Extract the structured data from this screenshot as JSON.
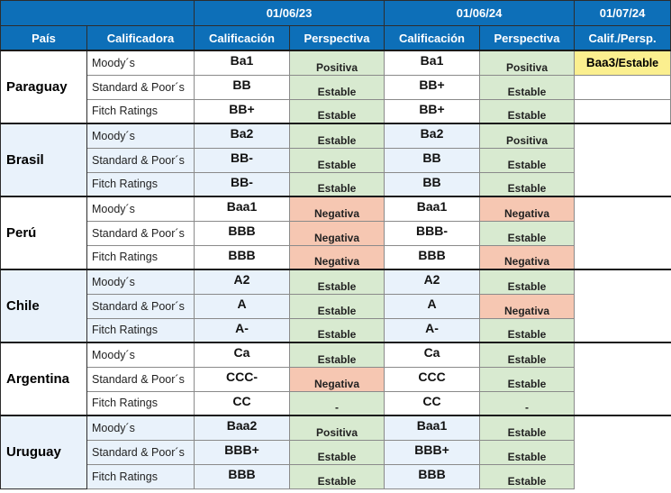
{
  "header": {
    "dates": [
      "01/06/23",
      "01/06/24",
      "01/07/24"
    ],
    "columns": [
      "País",
      "Calificadora",
      "Calificación",
      "Perspectiva",
      "Calificación",
      "Perspectiva",
      "Calif./Persp."
    ]
  },
  "countries": [
    {
      "name": "Paraguay",
      "rows": [
        {
          "agency": "Moody´s",
          "r23": "Ba1",
          "p23": "Positiva",
          "r24": "Ba1",
          "p24": "Positiva",
          "cur_rating": "Baa3",
          "cur_sep": "/",
          "cur_outlook": "Estable"
        },
        {
          "agency": "Standard & Poor´s",
          "r23": "BB",
          "p23": "Estable",
          "r24": "BB+",
          "p24": "Estable"
        },
        {
          "agency": "Fitch Ratings",
          "r23": "BB+",
          "p23": "Estable",
          "r24": "BB+",
          "p24": "Estable"
        }
      ]
    },
    {
      "name": "Brasil",
      "rows": [
        {
          "agency": "Moody´s",
          "r23": "Ba2",
          "p23": "Estable",
          "r24": "Ba2",
          "p24": "Positiva"
        },
        {
          "agency": "Standard & Poor´s",
          "r23": "BB-",
          "p23": "Estable",
          "r24": "BB",
          "p24": "Estable"
        },
        {
          "agency": "Fitch Ratings",
          "r23": "BB-",
          "p23": "Estable",
          "r24": "BB",
          "p24": "Estable"
        }
      ]
    },
    {
      "name": "Perú",
      "rows": [
        {
          "agency": "Moody´s",
          "r23": "Baa1",
          "p23": "Negativa",
          "r24": "Baa1",
          "p24": "Negativa"
        },
        {
          "agency": "Standard & Poor´s",
          "r23": "BBB",
          "p23": "Negativa",
          "r24": "BBB-",
          "p24": "Estable"
        },
        {
          "agency": "Fitch Ratings",
          "r23": "BBB",
          "p23": "Negativa",
          "r24": "BBB",
          "p24": "Negativa"
        }
      ]
    },
    {
      "name": "Chile",
      "rows": [
        {
          "agency": "Moody´s",
          "r23": "A2",
          "p23": "Estable",
          "r24": "A2",
          "p24": "Estable"
        },
        {
          "agency": "Standard & Poor´s",
          "r23": "A",
          "p23": "Estable",
          "r24": "A",
          "p24": "Negativa"
        },
        {
          "agency": "Fitch Ratings",
          "r23": "A-",
          "p23": "Estable",
          "r24": "A-",
          "p24": "Estable"
        }
      ]
    },
    {
      "name": "Argentina",
      "rows": [
        {
          "agency": "Moody´s",
          "r23": "Ca",
          "p23": "Estable",
          "r24": "Ca",
          "p24": "Estable"
        },
        {
          "agency": "Standard & Poor´s",
          "r23": "CCC-",
          "p23": "Negativa",
          "r24": "CCC",
          "p24": "Estable"
        },
        {
          "agency": "Fitch Ratings",
          "r23": "CC",
          "p23": "-",
          "r24": "CC",
          "p24": "-"
        }
      ]
    },
    {
      "name": "Uruguay",
      "rows": [
        {
          "agency": "Moody´s",
          "r23": "Baa2",
          "p23": "Positiva",
          "r24": "Baa1",
          "p24": "Estable"
        },
        {
          "agency": "Standard & Poor´s",
          "r23": "BBB+",
          "p23": "Estable",
          "r24": "BBB+",
          "p24": "Estable"
        },
        {
          "agency": "Fitch Ratings",
          "r23": "BBB",
          "p23": "Estable",
          "r24": "BBB",
          "p24": "Estable"
        }
      ]
    }
  ],
  "colors": {
    "header_blue": "#0d6fb8",
    "estable_green": "#d8ead0",
    "negativa_red": "#f6c7b2",
    "current_yellow": "#fbef8f",
    "alt_row_blue": "#e9f2fb"
  }
}
